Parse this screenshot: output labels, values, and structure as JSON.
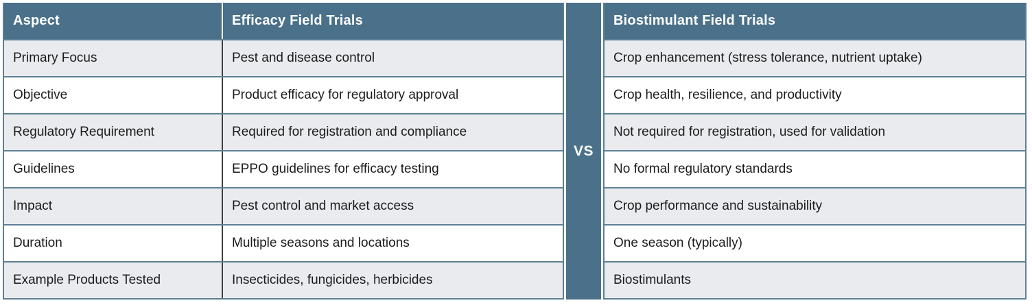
{
  "vs_label": "VS",
  "colors": {
    "header_bg": "#4A7189",
    "header_text": "#FFFFFF",
    "row_alt_bg": "#E9EBEE",
    "row_bg": "#FFFFFF",
    "grid_line": "#5C7F93",
    "column_divider": "#3F3F3F",
    "body_text": "#1C1C1C"
  },
  "left_table": {
    "columns": [
      "Aspect",
      "Efficacy Field Trials"
    ],
    "rows": [
      {
        "aspect": "Primary Focus",
        "value": "Pest and disease control"
      },
      {
        "aspect": "Objective",
        "value": "Product efficacy for regulatory approval"
      },
      {
        "aspect": "Regulatory Requirement",
        "value": "Required for registration and compliance"
      },
      {
        "aspect": "Guidelines",
        "value": "EPPO guidelines for efficacy testing"
      },
      {
        "aspect": "Impact",
        "value": "Pest control and market access"
      },
      {
        "aspect": "Duration",
        "value": "Multiple seasons and locations"
      },
      {
        "aspect": "Example Products Tested",
        "value": "Insecticides, fungicides, herbicides"
      }
    ]
  },
  "right_table": {
    "header": "Biostimulant Field Trials",
    "rows": [
      "Crop enhancement (stress tolerance, nutrient uptake)",
      "Crop health, resilience, and productivity",
      "Not required for registration, used for validation",
      "No formal regulatory standards",
      "Crop performance and sustainability",
      "One season (typically)",
      "Biostimulants"
    ]
  }
}
